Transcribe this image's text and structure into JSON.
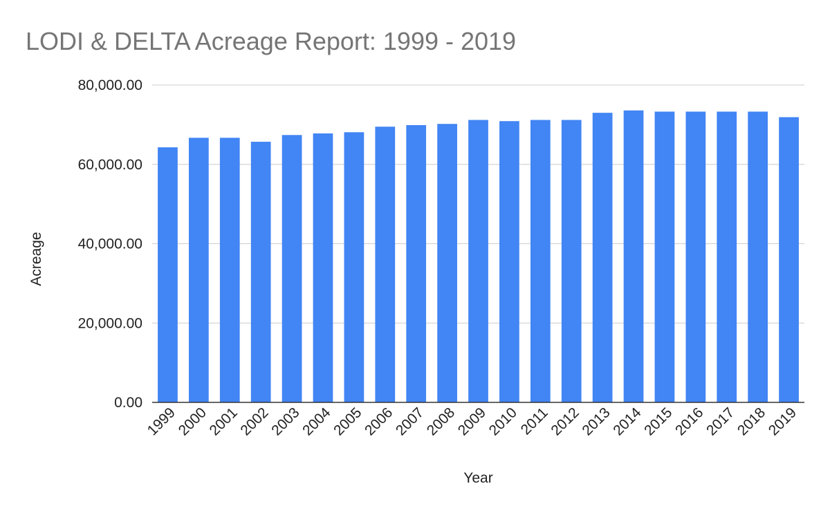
{
  "chart_data": {
    "type": "bar",
    "title": "LODI & DELTA Acreage Report: 1999 - 2019",
    "xlabel": "Year",
    "ylabel": "Acreage",
    "ylim": [
      0,
      80000
    ],
    "yticks": [
      0,
      20000,
      40000,
      60000,
      80000
    ],
    "ytick_labels": [
      "0.00",
      "20,000.00",
      "40,000.00",
      "60,000.00",
      "80,000.00"
    ],
    "grid": true,
    "legend": "none",
    "bar_color": "#4285f4",
    "categories": [
      "1999",
      "2000",
      "2001",
      "2002",
      "2003",
      "2004",
      "2005",
      "2006",
      "2007",
      "2008",
      "2009",
      "2010",
      "2011",
      "2012",
      "2013",
      "2014",
      "2015",
      "2016",
      "2017",
      "2018",
      "2019"
    ],
    "values": [
      64300,
      66700,
      66700,
      65700,
      67400,
      67800,
      68100,
      69500,
      69900,
      70200,
      71200,
      70900,
      71200,
      71200,
      73000,
      73600,
      73300,
      73300,
      73300,
      73300,
      71900
    ]
  }
}
